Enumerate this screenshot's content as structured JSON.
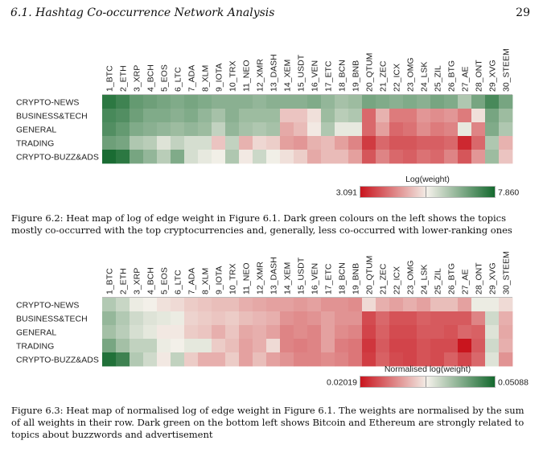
{
  "header": {
    "running_title": "6.1.  Hashtag Co-occurrence Network Analysis",
    "page_number": "29"
  },
  "columns": [
    "1_BTC",
    "2_ETH",
    "3_XRP",
    "4_BCH",
    "5_EOS",
    "6_LTC",
    "7_ADA",
    "8_XLM",
    "9_IOTA",
    "10_TRX",
    "11_NEO",
    "12_XMR",
    "13_DASH",
    "14_XEM",
    "15_USDT",
    "16_VEN",
    "17_ETC",
    "18_BCN",
    "19_BNB",
    "20_QTUM",
    "21_ZEC",
    "22_ICX",
    "23_OMG",
    "24_LSK",
    "25_ZIL",
    "26_BTG",
    "27_AE",
    "28_ONT",
    "29_XVG",
    "30_STEEM"
  ],
  "rows": [
    "CRYPTO-NEWS",
    "BUSINESS&TECH",
    "GENERAL",
    "TRADING",
    "CRYPTO-BUZZ&ADS"
  ],
  "colors": {
    "low": "#c9151e",
    "mid": "#f3f0e9",
    "high": "#14692e"
  },
  "figures": [
    {
      "id": "fig-6-2",
      "legend_title": "Log(weight)",
      "legend_min": "3.091",
      "legend_max": "7.860",
      "caption": "Figure 6.2: Heat map of log of edge weight in Figure 6.1. Dark green colours on the left shows the topics mostly co-occurred with the top cryptocurrencies and, generally, less co-occurred with lower-ranking ones",
      "chart_data": {
        "type": "heatmap",
        "title": "",
        "x": [
          "1_BTC",
          "2_ETH",
          "3_XRP",
          "4_BCH",
          "5_EOS",
          "6_LTC",
          "7_ADA",
          "8_XLM",
          "9_IOTA",
          "10_TRX",
          "11_NEO",
          "12_XMR",
          "13_DASH",
          "14_XEM",
          "15_USDT",
          "16_VEN",
          "17_ETC",
          "18_BCN",
          "19_BNB",
          "20_QTUM",
          "21_ZEC",
          "22_ICX",
          "23_OMG",
          "24_LSK",
          "25_ZIL",
          "26_BTG",
          "27_AE",
          "28_ONT",
          "29_XVG",
          "30_STEEM"
        ],
        "y": [
          "CRYPTO-NEWS",
          "BUSINESS&TECH",
          "GENERAL",
          "TRADING",
          "CRYPTO-BUZZ&ADS"
        ],
        "colorbar_label": "Log(weight)",
        "vmin": 3.091,
        "vmax": 7.86,
        "values": [
          [
            7.6,
            7.4,
            7.0,
            6.9,
            6.8,
            6.7,
            6.8,
            6.7,
            6.6,
            6.6,
            6.6,
            6.5,
            6.6,
            6.6,
            6.6,
            6.7,
            6.5,
            6.3,
            6.4,
            6.8,
            6.7,
            6.6,
            6.7,
            6.6,
            6.8,
            6.7,
            6.2,
            6.8,
            7.3,
            6.8
          ],
          [
            7.3,
            7.2,
            6.9,
            6.7,
            6.7,
            6.6,
            6.7,
            6.5,
            6.3,
            6.6,
            6.4,
            6.4,
            6.4,
            5.0,
            5.0,
            5.3,
            6.4,
            6.1,
            6.2,
            4.0,
            4.8,
            4.2,
            4.2,
            4.5,
            4.4,
            4.5,
            4.2,
            5.3,
            6.8,
            6.4
          ],
          [
            7.2,
            7.0,
            6.7,
            6.6,
            6.5,
            6.4,
            6.5,
            6.4,
            6.0,
            6.5,
            6.3,
            6.2,
            6.3,
            4.7,
            4.9,
            5.4,
            6.2,
            5.6,
            5.6,
            4.0,
            4.6,
            4.0,
            4.1,
            4.4,
            4.2,
            4.3,
            5.6,
            4.3,
            6.7,
            6.2
          ],
          [
            6.9,
            6.8,
            6.2,
            6.1,
            5.7,
            6.0,
            5.8,
            5.8,
            5.0,
            6.0,
            4.8,
            5.2,
            5.1,
            4.6,
            4.5,
            4.8,
            4.9,
            4.6,
            4.3,
            3.5,
            4.0,
            3.8,
            3.8,
            3.9,
            3.9,
            4.0,
            3.3,
            4.0,
            6.2,
            4.8
          ],
          [
            7.8,
            7.6,
            6.8,
            6.5,
            6.1,
            6.7,
            5.8,
            5.6,
            5.5,
            6.2,
            5.4,
            5.9,
            5.5,
            5.3,
            5.1,
            4.7,
            4.9,
            4.9,
            4.6,
            3.8,
            4.3,
            4.0,
            3.9,
            4.1,
            4.0,
            4.3,
            3.8,
            4.5,
            6.4,
            5.0
          ]
        ]
      }
    },
    {
      "id": "fig-6-3",
      "legend_title": "Normalised log(weight)",
      "legend_min": "0.02019",
      "legend_max": "0.05088",
      "caption": "Figure 6.3: Heat map of normalised log of edge weight in Figure 6.1. The weights are normalised by the sum of all weights in their row. Dark green on the bottom left shows Bitcoin and Ethereum are strongly related to topics about buzzwords and advertisement",
      "chart_data": {
        "type": "heatmap",
        "title": "",
        "x": [
          "1_BTC",
          "2_ETH",
          "3_XRP",
          "4_BCH",
          "5_EOS",
          "6_LTC",
          "7_ADA",
          "8_XLM",
          "9_IOTA",
          "10_TRX",
          "11_NEO",
          "12_XMR",
          "13_DASH",
          "14_XEM",
          "15_USDT",
          "16_VEN",
          "17_ETC",
          "18_BCN",
          "19_BNB",
          "20_QTUM",
          "21_ZEC",
          "22_ICX",
          "23_OMG",
          "24_LSK",
          "25_ZIL",
          "26_BTG",
          "27_AE",
          "28_ONT",
          "29_XVG",
          "30_STEEM"
        ],
        "y": [
          "CRYPTO-NEWS",
          "BUSINESS&TECH",
          "GENERAL",
          "TRADING",
          "CRYPTO-BUZZ&ADS"
        ],
        "colorbar_label": "Normalised log(weight)",
        "vmin": 0.02019,
        "vmax": 0.05088,
        "values": [
          [
            0.04,
            0.0385,
            0.036,
            0.0355,
            0.0345,
            0.034,
            0.033,
            0.0325,
            0.032,
            0.032,
            0.031,
            0.0305,
            0.03,
            0.03,
            0.0295,
            0.03,
            0.029,
            0.029,
            0.0285,
            0.034,
            0.031,
            0.03,
            0.031,
            0.03,
            0.032,
            0.032,
            0.03,
            0.036,
            0.036,
            0.034
          ],
          [
            0.042,
            0.04,
            0.038,
            0.037,
            0.0365,
            0.036,
            0.0335,
            0.033,
            0.0325,
            0.033,
            0.032,
            0.0315,
            0.031,
            0.029,
            0.0285,
            0.029,
            0.03,
            0.029,
            0.029,
            0.024,
            0.026,
            0.0245,
            0.0245,
            0.0255,
            0.025,
            0.025,
            0.025,
            0.028,
            0.038,
            0.031
          ],
          [
            0.041,
            0.0395,
            0.0375,
            0.0365,
            0.035,
            0.035,
            0.033,
            0.0325,
            0.031,
            0.0325,
            0.0305,
            0.031,
            0.03,
            0.028,
            0.0285,
            0.028,
            0.03,
            0.0285,
            0.028,
            0.0235,
            0.0255,
            0.024,
            0.024,
            0.025,
            0.025,
            0.0245,
            0.026,
            0.0255,
            0.037,
            0.0305
          ],
          [
            0.044,
            0.041,
            0.039,
            0.039,
            0.036,
            0.0355,
            0.0365,
            0.0365,
            0.033,
            0.032,
            0.03,
            0.031,
            0.034,
            0.028,
            0.0275,
            0.028,
            0.03,
            0.0275,
            0.027,
            0.0225,
            0.025,
            0.0235,
            0.0235,
            0.0245,
            0.024,
            0.024,
            0.0202,
            0.025,
            0.038,
            0.031
          ],
          [
            0.05,
            0.048,
            0.04,
            0.038,
            0.035,
            0.039,
            0.033,
            0.031,
            0.031,
            0.033,
            0.03,
            0.032,
            0.03,
            0.029,
            0.028,
            0.028,
            0.0285,
            0.028,
            0.027,
            0.023,
            0.0255,
            0.024,
            0.0235,
            0.0245,
            0.024,
            0.0255,
            0.0235,
            0.026,
            0.037,
            0.029
          ]
        ]
      }
    }
  ]
}
